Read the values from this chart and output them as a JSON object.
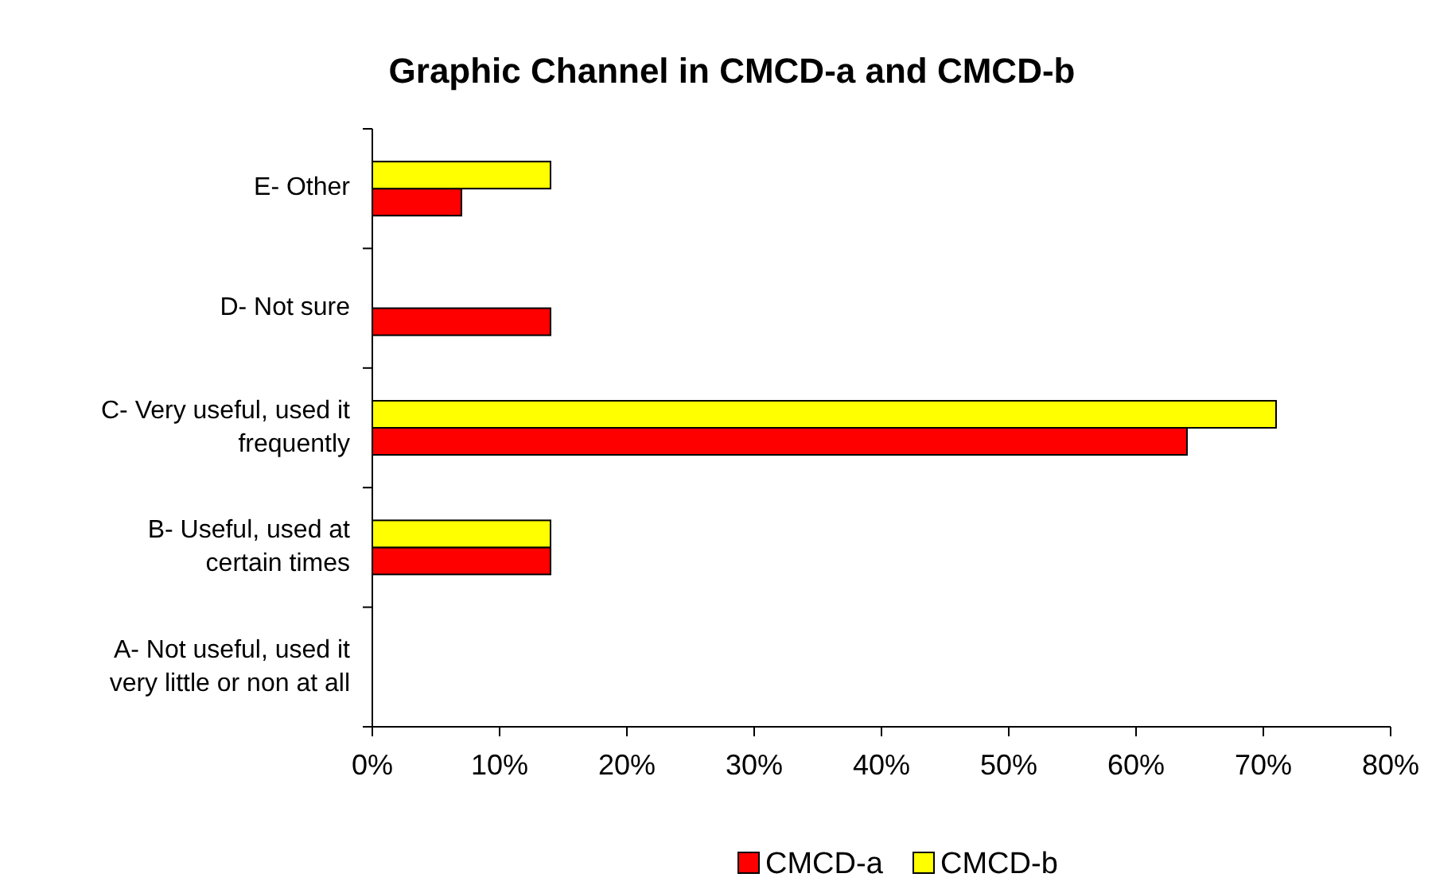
{
  "chart_data": {
    "type": "bar",
    "orientation": "horizontal",
    "title": "Graphic Channel in CMCD-a and CMCD-b",
    "categories": [
      "E- Other",
      "D- Not sure",
      "C- Very useful, used it frequently",
      "B- Useful, used at certain times",
      "A- Not useful, used it very little or non at all"
    ],
    "series": [
      {
        "name": "CMCD-a",
        "color": "#ff0000",
        "values": [
          7,
          14,
          64,
          14,
          0
        ]
      },
      {
        "name": "CMCD-b",
        "color": "#ffff00",
        "values": [
          14,
          0,
          71,
          14,
          0
        ]
      }
    ],
    "xlim": [
      0,
      80
    ],
    "xticks": [
      {
        "value": 0,
        "label": "0%"
      },
      {
        "value": 10,
        "label": "10%"
      },
      {
        "value": 20,
        "label": "20%"
      },
      {
        "value": 30,
        "label": "30%"
      },
      {
        "value": 40,
        "label": "40%"
      },
      {
        "value": 50,
        "label": "50%"
      },
      {
        "value": 60,
        "label": "60%"
      },
      {
        "value": 70,
        "label": "70%"
      },
      {
        "value": 80,
        "label": "80%"
      }
    ],
    "grid": false,
    "legend": "bottom"
  }
}
